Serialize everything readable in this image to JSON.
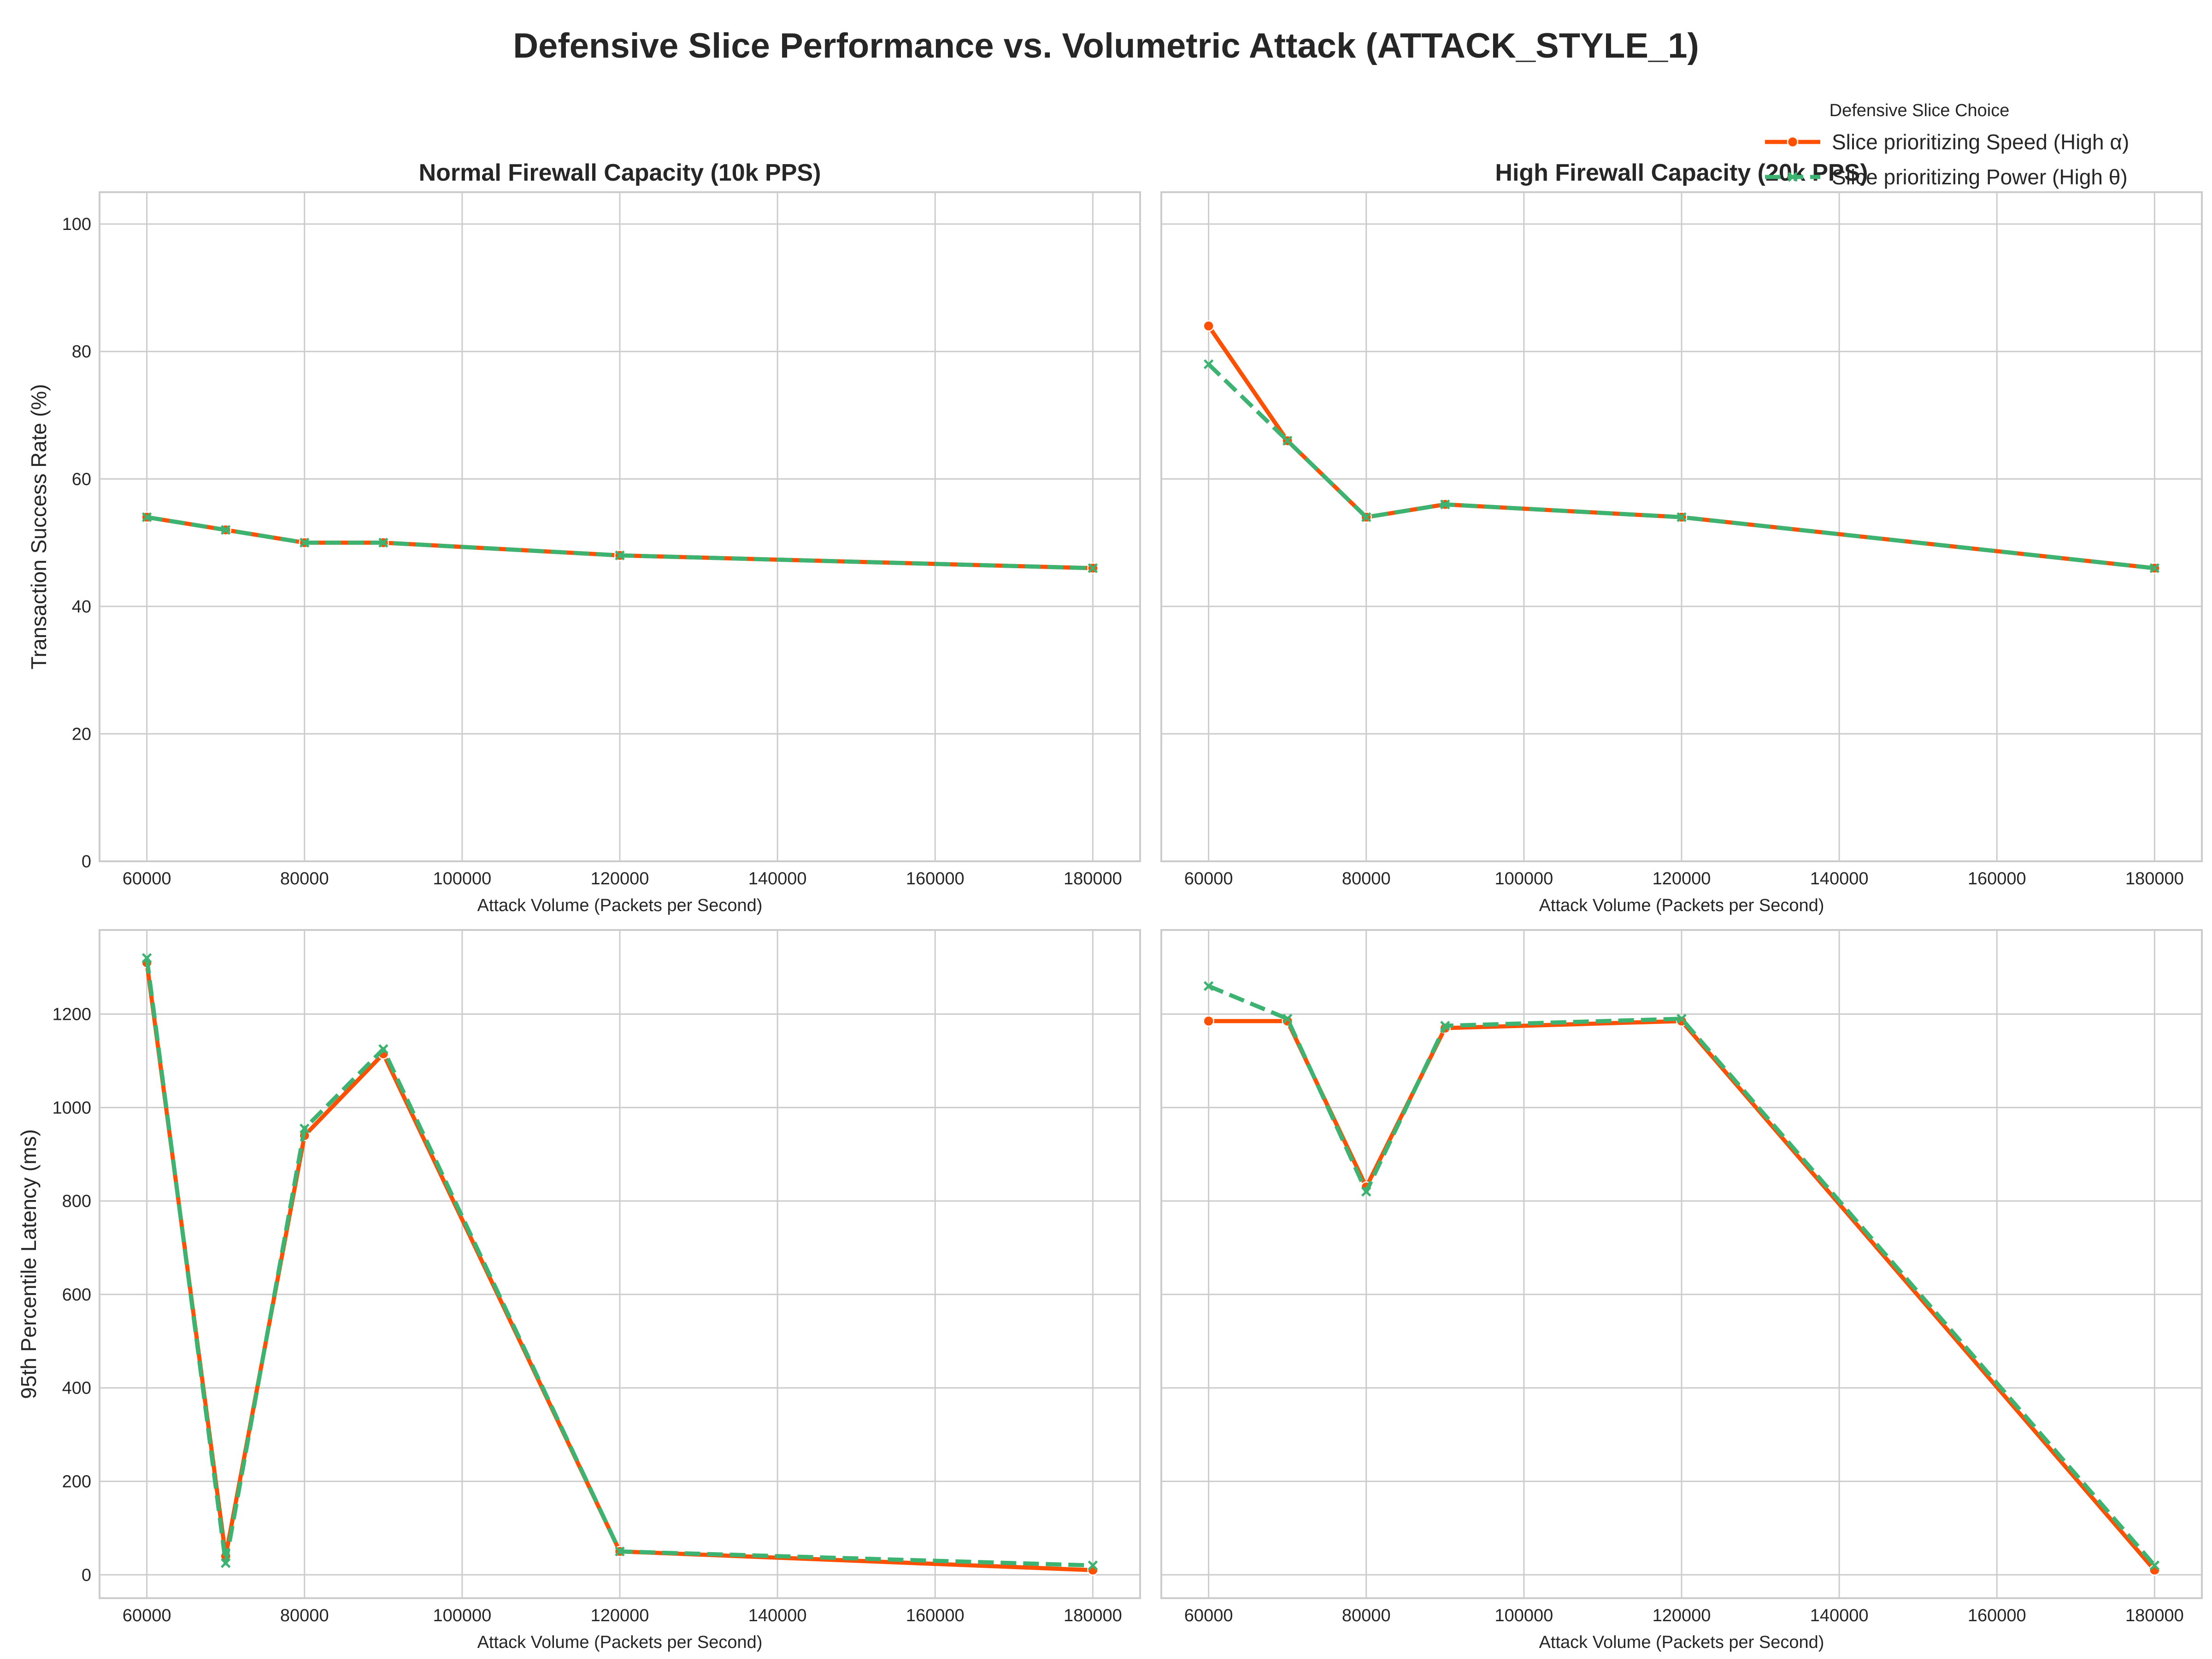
{
  "chart_data": {
    "type": "line",
    "title": "Defensive Slice Performance vs. Volumetric Attack (ATTACK_STYLE_1)",
    "legend": {
      "title": "Defensive Slice Choice",
      "placement": "top-right",
      "entries": [
        {
          "name": "Slice prioritizing Speed (High α)",
          "color": "#ff4f00",
          "line": "solid",
          "marker": "circle"
        },
        {
          "name": "Slice prioritizing Power (High θ)",
          "color": "#3cb371",
          "line": "dashed",
          "marker": "x"
        }
      ]
    },
    "x": [
      60000,
      70000,
      80000,
      90000,
      120000,
      180000
    ],
    "xlabel": "Attack Volume (Packets per Second)",
    "xlim": [
      54000,
      186000
    ],
    "xticks": [
      "60000",
      "80000",
      "100000",
      "120000",
      "140000",
      "160000",
      "180000"
    ],
    "grid": true,
    "panels": [
      {
        "title": "Normal Firewall Capacity (10k PPS)",
        "ylabel": "Transaction Success Rate (%)",
        "ylim": [
          0,
          105
        ],
        "yticks": [
          "0",
          "20",
          "40",
          "60",
          "80",
          "100"
        ],
        "series": [
          {
            "name": "Slice prioritizing Speed (High α)",
            "values": [
              54,
              52,
              50,
              50,
              48,
              46
            ]
          },
          {
            "name": "Slice prioritizing Power (High θ)",
            "values": [
              54,
              52,
              50,
              50,
              48,
              46
            ]
          }
        ]
      },
      {
        "title": "High Firewall Capacity (20k PPS)",
        "ylabel": "",
        "ylim": [
          0,
          105
        ],
        "yticks": [],
        "series": [
          {
            "name": "Slice prioritizing Speed (High α)",
            "values": [
              84,
              66,
              54,
              56,
              54,
              46
            ]
          },
          {
            "name": "Slice prioritizing Power (High θ)",
            "values": [
              78,
              66,
              54,
              56,
              54,
              46
            ]
          }
        ]
      },
      {
        "title": "",
        "ylabel": "95th Percentile Latency (ms)",
        "ylim": [
          -50,
          1380
        ],
        "yticks": [
          "0",
          "200",
          "400",
          "600",
          "800",
          "1000",
          "1200"
        ],
        "series": [
          {
            "name": "Slice prioritizing Speed (High α)",
            "values": [
              1310,
              40,
              940,
              1115,
              50,
              10
            ]
          },
          {
            "name": "Slice prioritizing Power (High θ)",
            "values": [
              1320,
              25,
              955,
              1125,
              50,
              20
            ]
          }
        ]
      },
      {
        "title": "",
        "ylabel": "",
        "ylim": [
          -50,
          1380
        ],
        "yticks": [],
        "series": [
          {
            "name": "Slice prioritizing Speed (High α)",
            "values": [
              1185,
              1185,
              830,
              1170,
              1185,
              10
            ]
          },
          {
            "name": "Slice prioritizing Power (High θ)",
            "values": [
              1260,
              1190,
              820,
              1175,
              1190,
              20
            ]
          }
        ]
      }
    ]
  }
}
